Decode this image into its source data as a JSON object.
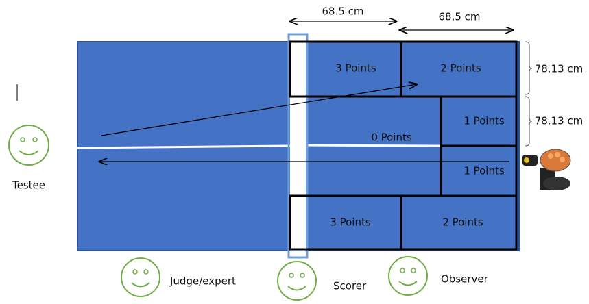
{
  "dimensions": {
    "top_left": "68.5 cm",
    "top_right": "68.5 cm",
    "right_upper": "78.13 cm",
    "right_lower": "78.13 cm"
  },
  "zones": {
    "top_left": "3 Points",
    "top_right": "2 Points",
    "center": "0 Points",
    "right_upper": "1 Points",
    "right_lower": "1 Points",
    "bottom_left": "3 Points",
    "bottom_right": "2 Points"
  },
  "people": {
    "testee": "Testee",
    "judge": "Judge/expert",
    "scorer": "Scorer",
    "observer": "Observer"
  }
}
